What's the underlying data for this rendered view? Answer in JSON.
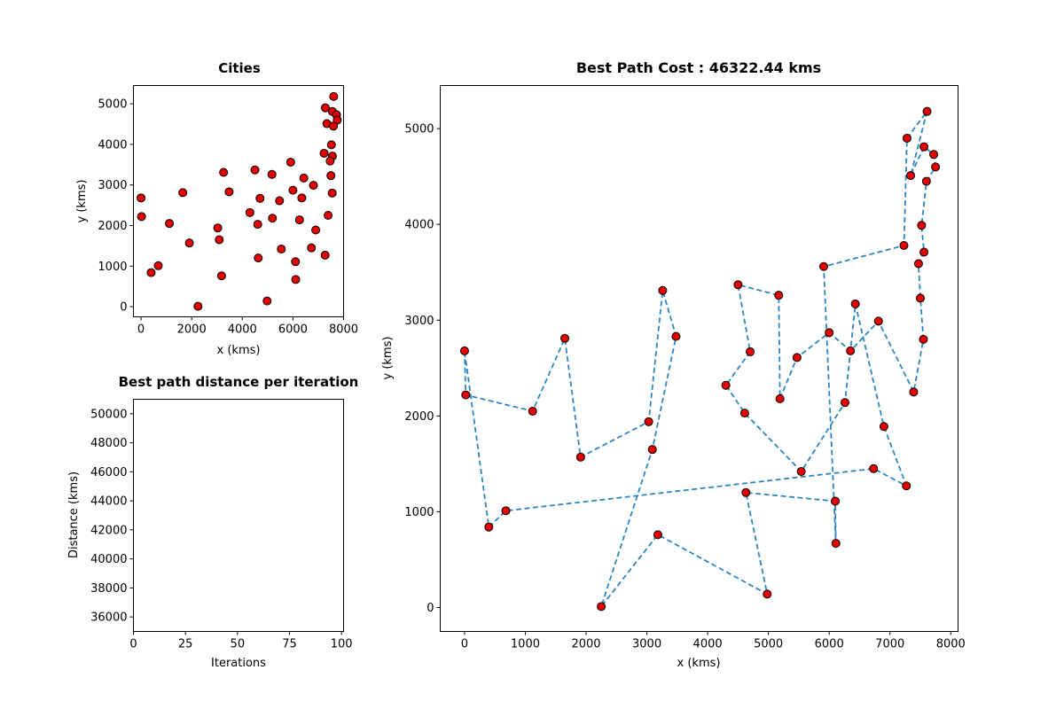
{
  "chart_data": [
    {
      "id": "cities",
      "type": "scatter",
      "title": "Cities",
      "xlabel": "x (kms)",
      "ylabel": "y (kms)",
      "xlim": [
        -300,
        8000
      ],
      "ylim": [
        -250,
        5450
      ],
      "xticks": [
        0,
        2000,
        4000,
        6000,
        8000
      ],
      "yticks": [
        0,
        1000,
        2000,
        3000,
        4000,
        5000
      ],
      "grid": false,
      "marker_color": "#e30000",
      "points_ref": "cities"
    },
    {
      "id": "distance",
      "type": "line",
      "title": "Best path distance per iteration",
      "xlabel": "Iterations",
      "ylabel": "Distance (kms)",
      "xlim": [
        0,
        101
      ],
      "ylim": [
        35000,
        51000
      ],
      "xticks": [
        0,
        25,
        50,
        75,
        100
      ],
      "yticks": [
        36000,
        38000,
        40000,
        42000,
        44000,
        46000,
        48000,
        50000
      ],
      "grid": false,
      "series": []
    },
    {
      "id": "best-path",
      "type": "line",
      "title": "Best Path Cost : 46322.44 kms",
      "xlabel": "x (kms)",
      "ylabel": "y (kms)",
      "xlim": [
        -400,
        8120
      ],
      "ylim": [
        -250,
        5450
      ],
      "xticks": [
        0,
        1000,
        2000,
        3000,
        4000,
        5000,
        6000,
        7000,
        8000
      ],
      "yticks": [
        0,
        1000,
        2000,
        3000,
        4000,
        5000
      ],
      "grid": false,
      "line_color": "#2e86c1",
      "marker_color": "#e30000",
      "points_ref": "cities",
      "tour": [
        0,
        1,
        2,
        3,
        4,
        5,
        6,
        7,
        8,
        9,
        10,
        11,
        12,
        13,
        14,
        15,
        16,
        17,
        18,
        19,
        20,
        21,
        22,
        23,
        24,
        25,
        26,
        27,
        28,
        29,
        30,
        31,
        32,
        33,
        34,
        35,
        36,
        37,
        38,
        39,
        40,
        41,
        42,
        43,
        44,
        45,
        46,
        47,
        48
      ]
    }
  ],
  "cities": [
    [
      0,
      2680
    ],
    [
      20,
      2220
    ],
    [
      1120,
      2050
    ],
    [
      1650,
      2810
    ],
    [
      1910,
      1570
    ],
    [
      3030,
      1940
    ],
    [
      3260,
      3310
    ],
    [
      3480,
      2830
    ],
    [
      3090,
      1650
    ],
    [
      2250,
      10
    ],
    [
      3180,
      760
    ],
    [
      4980,
      140
    ],
    [
      4630,
      1200
    ],
    [
      6100,
      1110
    ],
    [
      6110,
      670
    ],
    [
      5910,
      3560
    ],
    [
      7230,
      3780
    ],
    [
      7280,
      4900
    ],
    [
      7610,
      5180
    ],
    [
      7340,
      4510
    ],
    [
      7560,
      4810
    ],
    [
      7720,
      4730
    ],
    [
      7750,
      4600
    ],
    [
      7600,
      4450
    ],
    [
      7520,
      3990
    ],
    [
      7560,
      3710
    ],
    [
      7470,
      3590
    ],
    [
      7500,
      3230
    ],
    [
      7550,
      2800
    ],
    [
      7390,
      2250
    ],
    [
      6810,
      2990
    ],
    [
      6350,
      2680
    ],
    [
      6000,
      2870
    ],
    [
      5470,
      2610
    ],
    [
      5190,
      2180
    ],
    [
      5170,
      3260
    ],
    [
      4500,
      3370
    ],
    [
      4700,
      2670
    ],
    [
      4300,
      2320
    ],
    [
      4610,
      2030
    ],
    [
      5540,
      1420
    ],
    [
      6260,
      2140
    ],
    [
      6430,
      3170
    ],
    [
      6900,
      1890
    ],
    [
      7270,
      1270
    ],
    [
      6730,
      1450
    ],
    [
      680,
      1010
    ],
    [
      400,
      840
    ],
    [
      0,
      2680
    ]
  ]
}
